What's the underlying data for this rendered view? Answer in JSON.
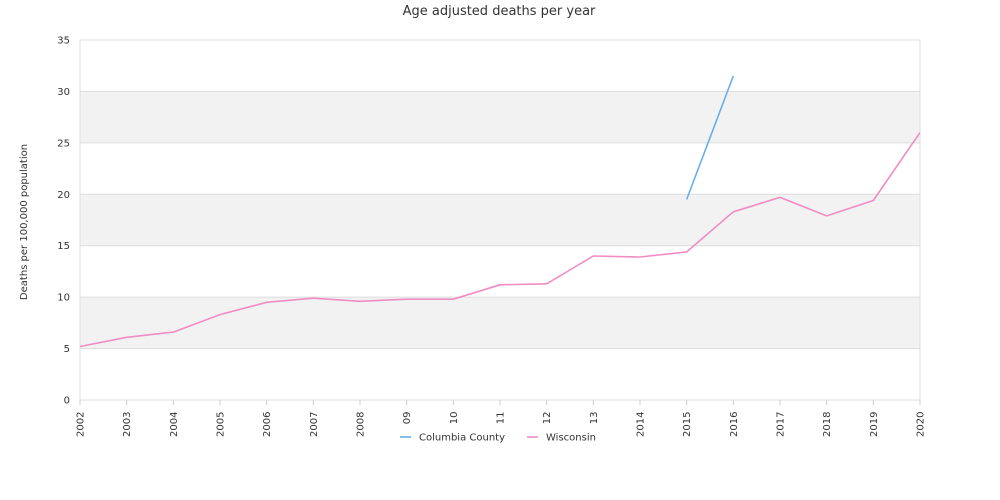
{
  "chart_data": {
    "type": "line",
    "title": "Age adjusted deaths per year",
    "xlabel": "",
    "ylabel": "Deaths per 100,000 population",
    "categories": [
      "2002",
      "2003",
      "2004",
      "2005",
      "2006",
      "2007",
      "2008",
      "09",
      "10",
      "11",
      "12",
      "13",
      "2014",
      "2015",
      "2016",
      "2017",
      "2018",
      "2019",
      "2020"
    ],
    "yticks": [
      0,
      5,
      10,
      15,
      20,
      25,
      30,
      35
    ],
    "ylim": [
      0,
      35
    ],
    "grid": "alternating horizontal bands",
    "legend_position": "bottom",
    "series": [
      {
        "name": "Columbia County",
        "color": "#6aaee8",
        "values": [
          null,
          null,
          null,
          null,
          null,
          null,
          null,
          null,
          null,
          null,
          null,
          null,
          null,
          19.5,
          31.5,
          null,
          null,
          null,
          null
        ]
      },
      {
        "name": "Wisconsin",
        "color": "#f08cc4",
        "values": [
          5.2,
          6.1,
          6.6,
          8.3,
          9.5,
          9.9,
          9.6,
          9.8,
          9.8,
          11.2,
          11.3,
          14.0,
          13.9,
          14.4,
          18.3,
          19.7,
          17.9,
          19.4,
          26.0
        ]
      }
    ]
  },
  "colors": {
    "band": "#f2f2f2",
    "gridline": "#dddddd",
    "axis": "#cccccc"
  }
}
